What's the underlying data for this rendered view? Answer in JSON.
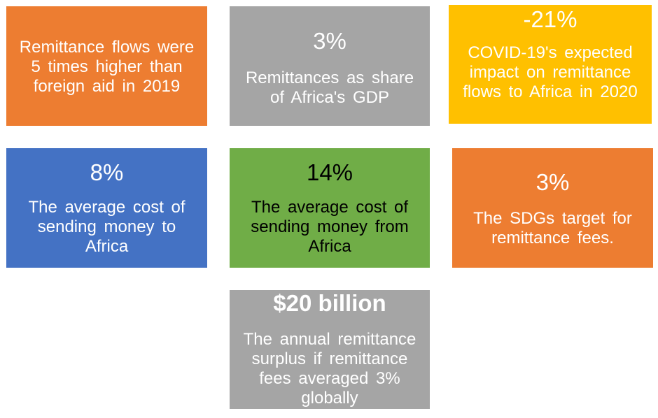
{
  "colors": {
    "orange": "#ED7D31",
    "gray": "#A5A5A5",
    "gold": "#FFC000",
    "blue": "#4472C4",
    "green": "#70AD47"
  },
  "tiles": [
    {
      "id": "aid-comparison",
      "stat": "",
      "description": "Remittance flows were 5 times higher than foreign aid in 2019",
      "color": "#ED7D31"
    },
    {
      "id": "gdp-share",
      "stat": "3%",
      "description": "Remittances as share of Africa's GDP",
      "color": "#A5A5A5"
    },
    {
      "id": "covid-impact",
      "stat": "-21%",
      "description": "COVID-19's expected impact on remittance flows to Africa in 2020",
      "color": "#FFC000"
    },
    {
      "id": "cost-to-africa",
      "stat": "8%",
      "description": "The average cost of sending money to Africa",
      "color": "#4472C4"
    },
    {
      "id": "cost-from-africa",
      "stat": "14%",
      "description": "The average cost of sending money from Africa",
      "color": "#70AD47"
    },
    {
      "id": "sdg-target",
      "stat": "3%",
      "description": "The SDGs target for remittance fees.",
      "color": "#ED7D31"
    },
    {
      "id": "annual-surplus",
      "stat": "$20 billion",
      "description": "The annual remittance surplus if remittance fees averaged 3% globally",
      "color": "#A5A5A5"
    }
  ]
}
